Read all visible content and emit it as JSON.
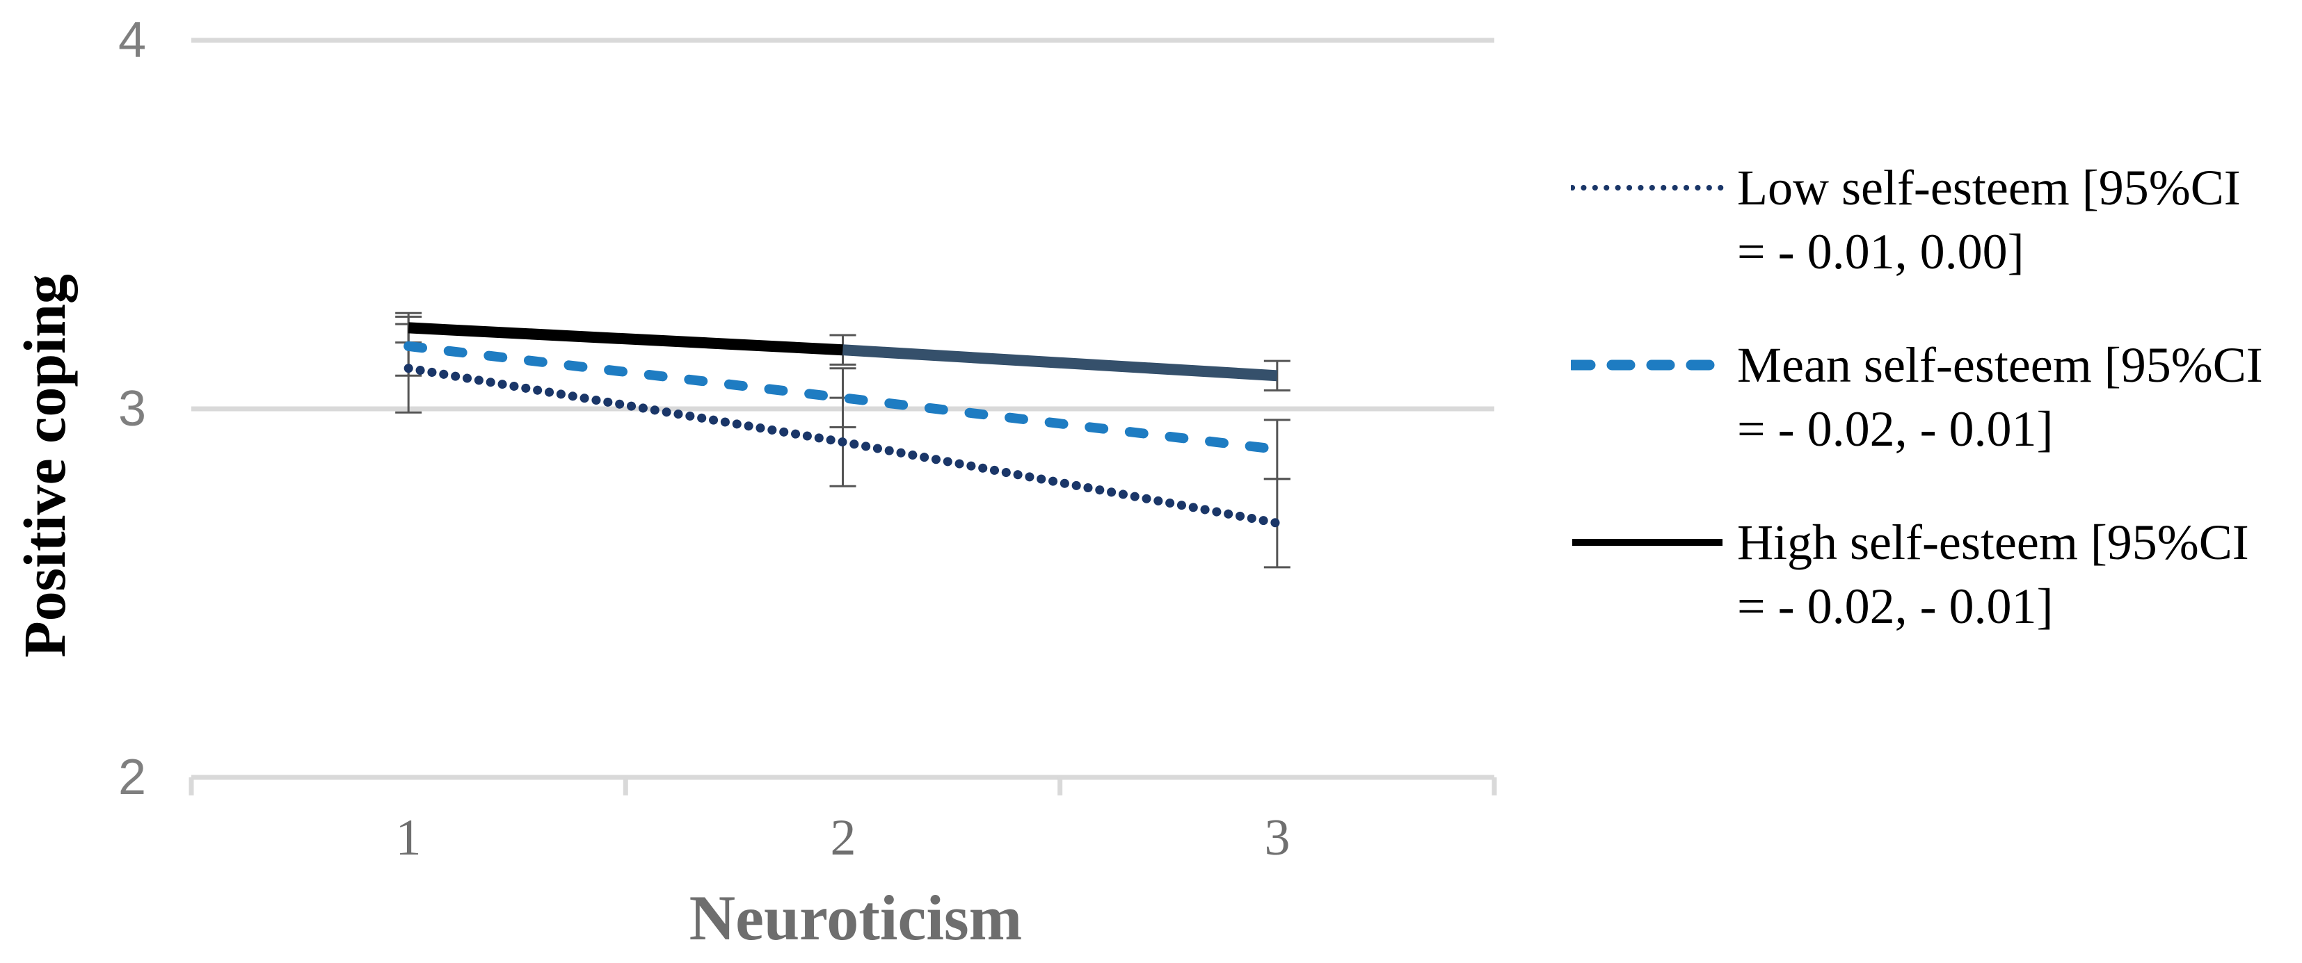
{
  "chart_data": {
    "type": "line",
    "title": "",
    "xlabel": "Neuroticism",
    "ylabel": "Positive coping",
    "x": [
      1,
      2,
      3
    ],
    "xticks": [
      "1",
      "2",
      "3"
    ],
    "yticks": [
      "4",
      "3",
      "2"
    ],
    "ytick_values": [
      4,
      3,
      2
    ],
    "ylim": [
      2,
      4
    ],
    "xlim_categories": 3,
    "grid": "horizontal",
    "legend_position": "right",
    "gridline_color": "#d9d9d9",
    "error_bar_color": "#555555",
    "axis_tick_label_color": "#7f7f7f",
    "series": [
      {
        "key": "low",
        "name": "Low self-esteem",
        "label_line1": "Low self-esteem [95%CI",
        "label_line2": "= - 0.01, 0.00]",
        "style": "dotted",
        "color": "#1a3668",
        "values": [
          3.11,
          2.91,
          2.69
        ],
        "ci_half_width": 0.12
      },
      {
        "key": "mean",
        "name": "Mean self-esteem",
        "label_line1": "Mean self-esteem [95%CI",
        "label_line2": "= - 0.02, - 0.01]",
        "style": "dashed",
        "color": "#1e7cc2",
        "values": [
          3.17,
          3.03,
          2.89
        ],
        "ci_half_width": 0.08
      },
      {
        "key": "high",
        "name": "High self-esteem",
        "label_line1": "High self-esteem [95%CI",
        "label_line2": "= - 0.02, - 0.01]",
        "style": "solid",
        "color": "#000000",
        "color_segment2": "#35506b",
        "values": [
          3.22,
          3.16,
          3.09
        ],
        "ci_half_width": 0.04
      }
    ]
  }
}
